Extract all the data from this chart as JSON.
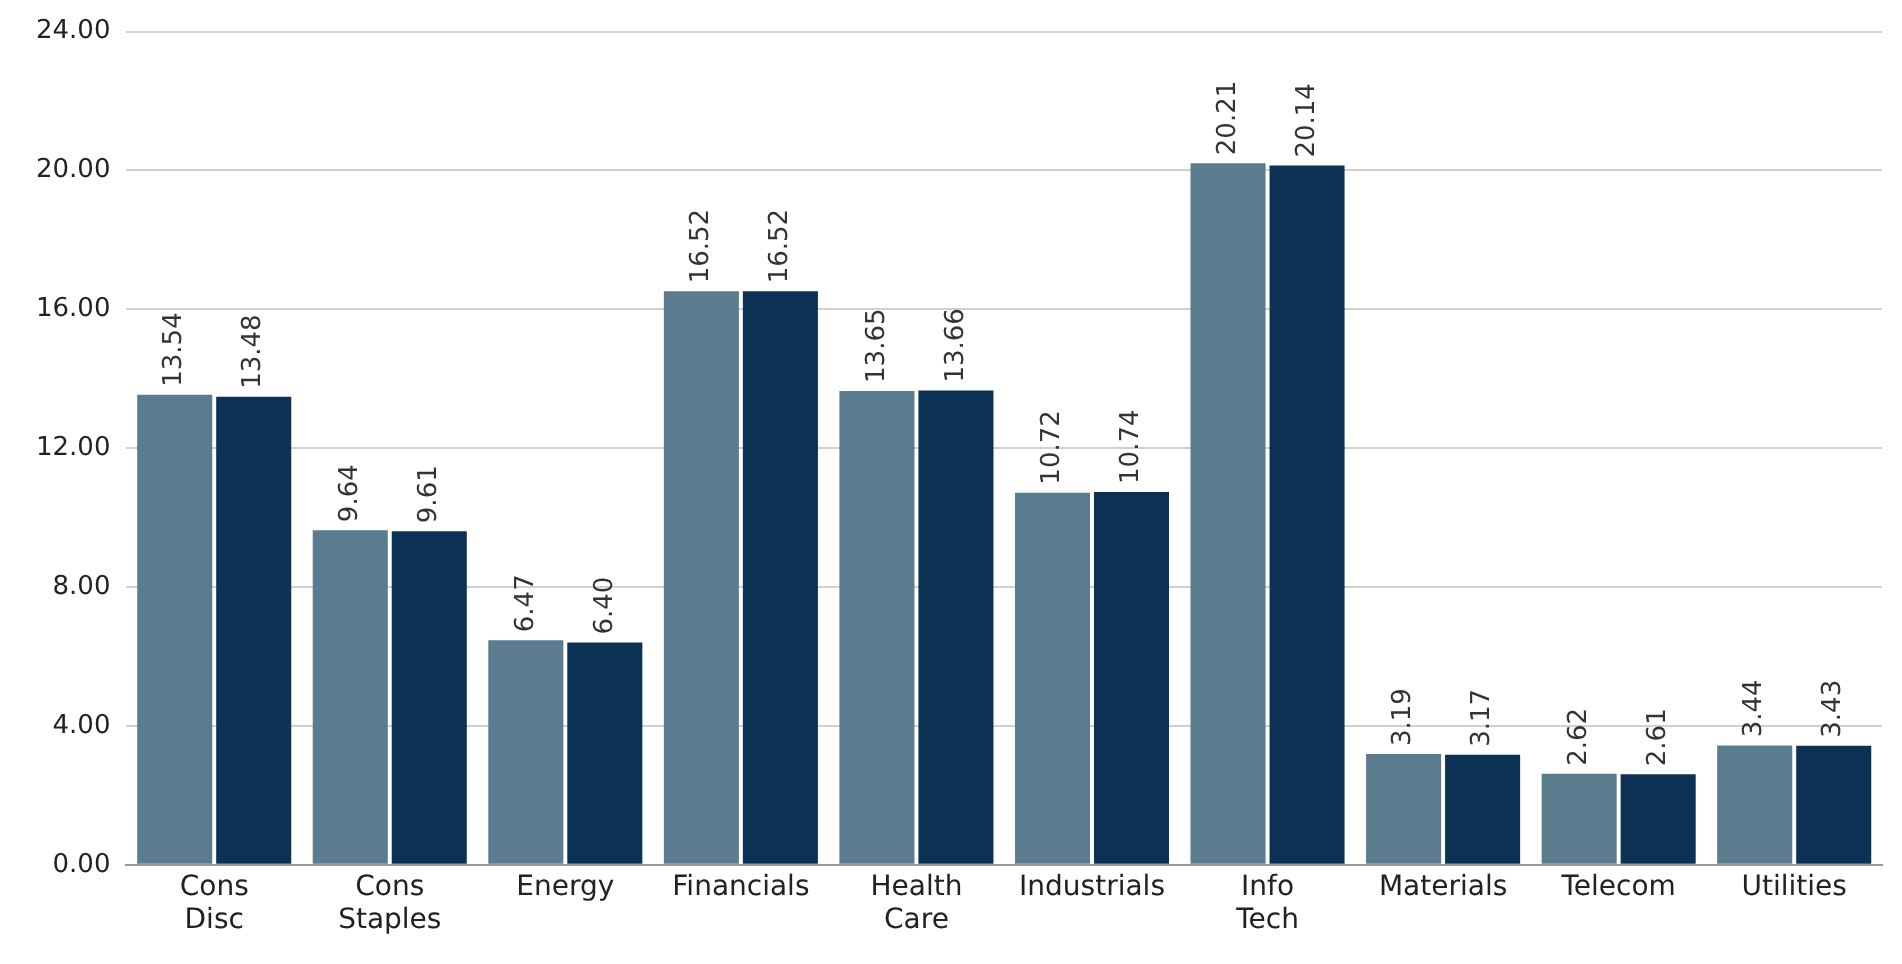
{
  "chart_data": {
    "type": "bar",
    "categories": [
      "Cons Disc",
      "Cons Staples",
      "Energy",
      "Financials",
      "Health Care",
      "Industrials",
      "Info Tech",
      "Materials",
      "Telecom",
      "Utilities"
    ],
    "series": [
      {
        "color": "#5b7b8f",
        "values": [
          13.54,
          9.64,
          6.47,
          16.52,
          13.65,
          10.72,
          20.21,
          3.19,
          2.62,
          3.44
        ],
        "value_labels": [
          "13.54",
          "9.64",
          "6.47",
          "16.52",
          "13.65",
          "10.72",
          "20.21",
          "3.19",
          "2.62",
          "3.44"
        ]
      },
      {
        "color": "#0b3155",
        "values": [
          13.48,
          9.61,
          6.4,
          16.52,
          13.66,
          10.74,
          20.14,
          3.17,
          2.61,
          3.43
        ],
        "value_labels": [
          "13.48",
          "9.61",
          "6.40",
          "16.52",
          "13.66",
          "10.74",
          "20.14",
          "3.17",
          "2.61",
          "3.43"
        ]
      }
    ],
    "ylim": [
      0,
      24
    ],
    "yticks": [
      {
        "value": 0,
        "label": "0.00"
      },
      {
        "value": 4,
        "label": "4.00"
      },
      {
        "value": 8,
        "label": "8.00"
      },
      {
        "value": 12,
        "label": "12.00"
      },
      {
        "value": 16,
        "label": "16.00"
      },
      {
        "value": 20,
        "label": "20.00"
      },
      {
        "value": 24,
        "label": "24.00"
      }
    ],
    "grid": "y"
  }
}
